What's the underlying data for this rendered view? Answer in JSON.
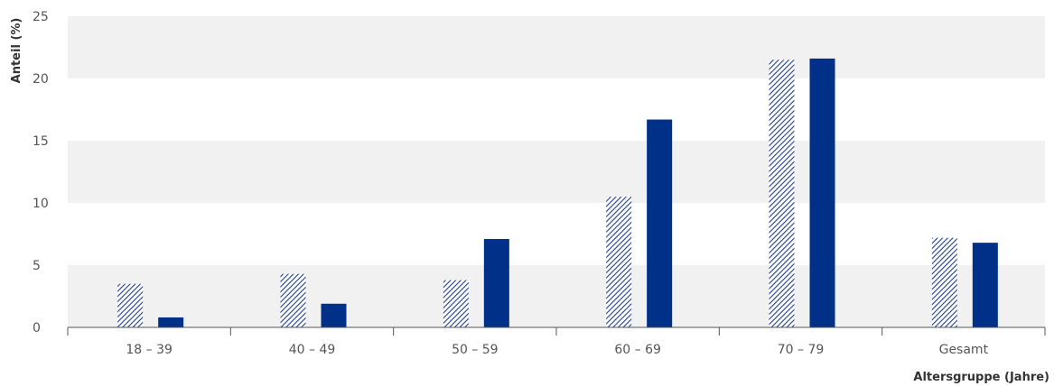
{
  "chart_data": {
    "type": "bar",
    "xlabel": "Altersgruppe (Jahre)",
    "ylabel": "Anteil (%)",
    "ylim": [
      0,
      25
    ],
    "yticks": [
      0,
      5,
      10,
      15,
      20,
      25
    ],
    "categories": [
      "18 – 39",
      "40 – 49",
      "50 – 59",
      "60 – 69",
      "70 – 79",
      "Gesamt"
    ],
    "series": [
      {
        "values": [
          3.5,
          4.3,
          3.8,
          10.5,
          21.5,
          7.2
        ],
        "color": "#1f3f8f",
        "fill": "hatched"
      },
      {
        "values": [
          0.8,
          1.9,
          7.1,
          16.7,
          21.6,
          6.8
        ],
        "color": "#003087",
        "fill": "solid"
      }
    ],
    "grid": "alternating horizontal bands",
    "legend": "none"
  }
}
